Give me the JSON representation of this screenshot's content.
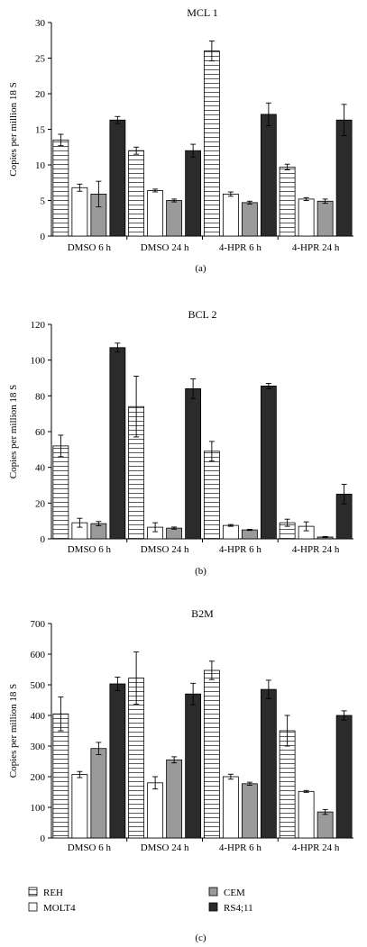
{
  "legend": {
    "items": [
      {
        "name": "REH",
        "fill": "hatch"
      },
      {
        "name": "MOLT4",
        "fill": "#ffffff"
      },
      {
        "name": "CEM",
        "fill": "#9a9a9a"
      },
      {
        "name": "RS4;11",
        "fill": "#2b2b2b"
      }
    ]
  },
  "chart_data": [
    {
      "type": "bar",
      "title": "MCL 1",
      "panel_label": "(a)",
      "ylabel": "Copies per million 18 S",
      "xlabel": "",
      "ylim": [
        0,
        30
      ],
      "yticks": [
        0,
        5,
        10,
        15,
        20,
        25,
        30
      ],
      "grid": false,
      "categories": [
        "DMSO 6 h",
        "DMSO 24 h",
        "4-HPR 6 h",
        "4-HPR 24 h"
      ],
      "series": [
        {
          "name": "REH",
          "values": [
            13.5,
            12.0,
            26.0,
            9.7
          ],
          "errors": [
            0.8,
            0.5,
            1.4,
            0.4
          ]
        },
        {
          "name": "MOLT4",
          "values": [
            6.8,
            6.4,
            5.9,
            5.2
          ],
          "errors": [
            0.5,
            0.2,
            0.3,
            0.2
          ]
        },
        {
          "name": "CEM",
          "values": [
            5.9,
            5.0,
            4.7,
            4.9
          ],
          "errors": [
            1.8,
            0.2,
            0.2,
            0.3
          ]
        },
        {
          "name": "RS4;11",
          "values": [
            16.3,
            12.0,
            17.1,
            16.3
          ],
          "errors": [
            0.5,
            0.9,
            1.6,
            2.2
          ]
        }
      ]
    },
    {
      "type": "bar",
      "title": "BCL 2",
      "panel_label": "(b)",
      "ylabel": "Copies per million 18 S",
      "xlabel": "",
      "ylim": [
        0,
        120
      ],
      "yticks": [
        0,
        20,
        40,
        60,
        80,
        100,
        120
      ],
      "grid": false,
      "categories": [
        "DMSO 6 h",
        "DMSO 24 h",
        "4-HPR 6 h",
        "4-HPR 24 h"
      ],
      "series": [
        {
          "name": "REH",
          "values": [
            52,
            74,
            49,
            9
          ],
          "errors": [
            6,
            17,
            5.5,
            2
          ]
        },
        {
          "name": "MOLT4",
          "values": [
            9,
            6.5,
            7.5,
            7
          ],
          "errors": [
            2.5,
            2.5,
            0.5,
            2.5
          ]
        },
        {
          "name": "CEM",
          "values": [
            8.5,
            6,
            5,
            1
          ],
          "errors": [
            1.2,
            0.6,
            0.3,
            0.3
          ]
        },
        {
          "name": "RS4;11",
          "values": [
            107,
            84,
            85.5,
            25
          ],
          "errors": [
            2.5,
            5.5,
            1.5,
            5.5
          ]
        }
      ]
    },
    {
      "type": "bar",
      "title": "B2M",
      "panel_label": "(c)",
      "ylabel": "Copies per million 18 S",
      "xlabel": "",
      "ylim": [
        0,
        700
      ],
      "yticks": [
        0,
        100,
        200,
        300,
        400,
        500,
        600,
        700
      ],
      "grid": false,
      "categories": [
        "DMSO 6 h",
        "DMSO 24 h",
        "4-HPR 6 h",
        "4-HPR 24 h"
      ],
      "series": [
        {
          "name": "REH",
          "values": [
            405,
            522,
            547,
            350
          ],
          "errors": [
            55,
            85,
            30,
            50
          ]
        },
        {
          "name": "MOLT4",
          "values": [
            207,
            180,
            200,
            152
          ],
          "errors": [
            10,
            20,
            8,
            3
          ]
        },
        {
          "name": "CEM",
          "values": [
            292,
            255,
            177,
            85
          ],
          "errors": [
            20,
            10,
            5,
            8
          ]
        },
        {
          "name": "RS4;11",
          "values": [
            503,
            470,
            485,
            400
          ],
          "errors": [
            22,
            35,
            30,
            15
          ]
        }
      ]
    }
  ]
}
